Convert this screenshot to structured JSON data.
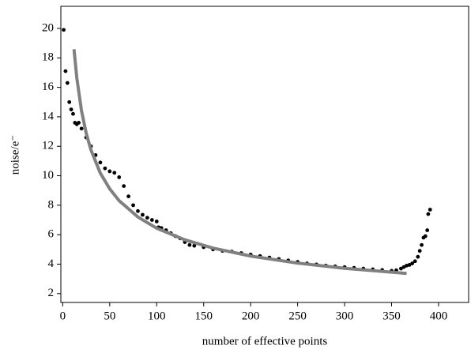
{
  "chart_data": {
    "type": "scatter",
    "x_label": "number of effective points",
    "y_label": "noise/e⁻",
    "xlim": [
      -2,
      432
    ],
    "ylim": [
      1.4,
      21.5
    ],
    "xticks": [
      0,
      50,
      100,
      150,
      200,
      250,
      300,
      350,
      400
    ],
    "yticks": [
      2,
      4,
      6,
      8,
      10,
      12,
      14,
      16,
      18,
      20
    ],
    "grid": false,
    "series": [
      {
        "style": "dots",
        "color": "#000000",
        "x": [
          1,
          3,
          5,
          7,
          9,
          11,
          13,
          15,
          17,
          20,
          25,
          30,
          35,
          40,
          45,
          50,
          55,
          60,
          65,
          70,
          75,
          80,
          85,
          90,
          95,
          100,
          102,
          105,
          110,
          115,
          120,
          125,
          130,
          135,
          140,
          150,
          160,
          170,
          180,
          190,
          200,
          210,
          220,
          230,
          240,
          250,
          260,
          270,
          280,
          290,
          300,
          310,
          320,
          330,
          340,
          350,
          355,
          360,
          363,
          366,
          369,
          372,
          375,
          378,
          380,
          382,
          384,
          386,
          388,
          389,
          391
        ],
        "values": [
          19.9,
          17.1,
          16.3,
          15.0,
          14.5,
          14.2,
          13.6,
          13.5,
          13.6,
          13.2,
          12.6,
          12.0,
          11.4,
          10.9,
          10.5,
          10.3,
          10.2,
          9.9,
          9.3,
          8.6,
          8.0,
          7.6,
          7.35,
          7.15,
          7.0,
          6.9,
          6.5,
          6.45,
          6.3,
          6.1,
          5.9,
          5.75,
          5.5,
          5.3,
          5.25,
          5.15,
          5.0,
          4.9,
          4.85,
          4.75,
          4.65,
          4.55,
          4.45,
          4.35,
          4.25,
          4.15,
          4.05,
          3.98,
          3.9,
          3.85,
          3.8,
          3.75,
          3.7,
          3.65,
          3.6,
          3.55,
          3.58,
          3.7,
          3.8,
          3.9,
          3.95,
          4.05,
          4.2,
          4.5,
          4.9,
          5.3,
          5.8,
          5.9,
          6.3,
          7.4,
          7.7
        ]
      },
      {
        "style": "line",
        "color": "#808080",
        "x": [
          12,
          15,
          20,
          25,
          30,
          40,
          50,
          60,
          80,
          100,
          130,
          160,
          200,
          250,
          300,
          366
        ],
        "values": [
          18.59,
          16.63,
          14.4,
          12.88,
          11.76,
          10.18,
          9.11,
          8.31,
          7.2,
          6.44,
          5.65,
          5.09,
          4.55,
          4.07,
          3.72,
          3.37
        ]
      }
    ]
  }
}
